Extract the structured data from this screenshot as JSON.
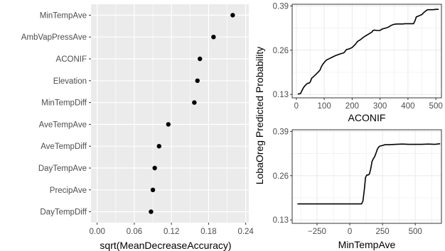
{
  "colors": {
    "panel_bg": "#ebebeb",
    "grid": "#ffffff",
    "white_panel_grid": "#ebebeb",
    "point": "#000000",
    "line": "#000000",
    "tick_text": "#4d4d4d"
  },
  "chart_data": [
    {
      "type": "scatter",
      "theme": "gray",
      "categories": [
        "MinTempAve",
        "AmbVapPressAve",
        "ACONIF",
        "Elevation",
        "MinTempDiff",
        "AveTempAve",
        "AveTempDiff",
        "DayTempAve",
        "PrecipAve",
        "DayTempDiff"
      ],
      "values": [
        0.219,
        0.188,
        0.166,
        0.162,
        0.157,
        0.115,
        0.1,
        0.093,
        0.09,
        0.087
      ],
      "xlabel": "sqrt(MeanDecreaseAccuracy)",
      "xlim": [
        -0.01,
        0.245
      ],
      "xticks": [
        "0.00",
        "0.06",
        "0.12",
        "0.18",
        "0.24"
      ],
      "grid": true
    },
    {
      "type": "line",
      "theme": "bw",
      "xlabel": "ACONIF",
      "ylabel": "LobaOreg Predicted Probability",
      "xlim": [
        -15,
        520
      ],
      "ylim": [
        0.12,
        0.395
      ],
      "xticks": [
        "0",
        "100",
        "200",
        "300",
        "400",
        "500"
      ],
      "yticks": [
        "0.13",
        "0.26",
        "0.39"
      ],
      "grid": true,
      "x": [
        5,
        12,
        15,
        20,
        25,
        30,
        35,
        40,
        45,
        50,
        55,
        60,
        70,
        80,
        85,
        90,
        95,
        100,
        105,
        110,
        115,
        120,
        130,
        140,
        150,
        160,
        170,
        175,
        180,
        190,
        200,
        210,
        220,
        230,
        240,
        250,
        260,
        270,
        275,
        280,
        290,
        300,
        305,
        310,
        320,
        330,
        340,
        350,
        360,
        370,
        380,
        390,
        410,
        420,
        425,
        430,
        440,
        450,
        460,
        470,
        480,
        490,
        500,
        510
      ],
      "y": [
        0.131,
        0.132,
        0.133,
        0.141,
        0.149,
        0.155,
        0.159,
        0.163,
        0.163,
        0.167,
        0.178,
        0.181,
        0.189,
        0.197,
        0.202,
        0.212,
        0.219,
        0.224,
        0.229,
        0.232,
        0.234,
        0.236,
        0.24,
        0.244,
        0.247,
        0.25,
        0.252,
        0.257,
        0.262,
        0.264,
        0.268,
        0.276,
        0.286,
        0.291,
        0.298,
        0.303,
        0.308,
        0.313,
        0.318,
        0.319,
        0.318,
        0.318,
        0.321,
        0.323,
        0.325,
        0.328,
        0.333,
        0.336,
        0.337,
        0.337,
        0.337,
        0.338,
        0.338,
        0.338,
        0.346,
        0.358,
        0.361,
        0.365,
        0.373,
        0.379,
        0.379,
        0.379,
        0.38,
        0.38
      ]
    },
    {
      "type": "line",
      "theme": "bw",
      "xlabel": "MinTempAve",
      "ylabel": "LobaOreg Predicted Probability",
      "xlim": [
        -440,
        700
      ],
      "ylim": [
        0.12,
        0.395
      ],
      "xticks": [
        "-250",
        "0",
        "250",
        "500"
      ],
      "yticks": [
        "0.13",
        "0.26",
        "0.39"
      ],
      "grid": true,
      "x": [
        -400,
        -300,
        -200,
        -100,
        0,
        90,
        100,
        110,
        120,
        130,
        140,
        150,
        160,
        170,
        180,
        190,
        200,
        210,
        220,
        230,
        240,
        250,
        270,
        300,
        350,
        400,
        450,
        500,
        550,
        600,
        650,
        690
      ],
      "y": [
        0.177,
        0.177,
        0.177,
        0.177,
        0.177,
        0.177,
        0.185,
        0.215,
        0.255,
        0.262,
        0.262,
        0.265,
        0.28,
        0.302,
        0.31,
        0.316,
        0.326,
        0.337,
        0.344,
        0.347,
        0.348,
        0.349,
        0.351,
        0.351,
        0.352,
        0.353,
        0.352,
        0.352,
        0.352,
        0.353,
        0.352,
        0.354
      ]
    }
  ]
}
